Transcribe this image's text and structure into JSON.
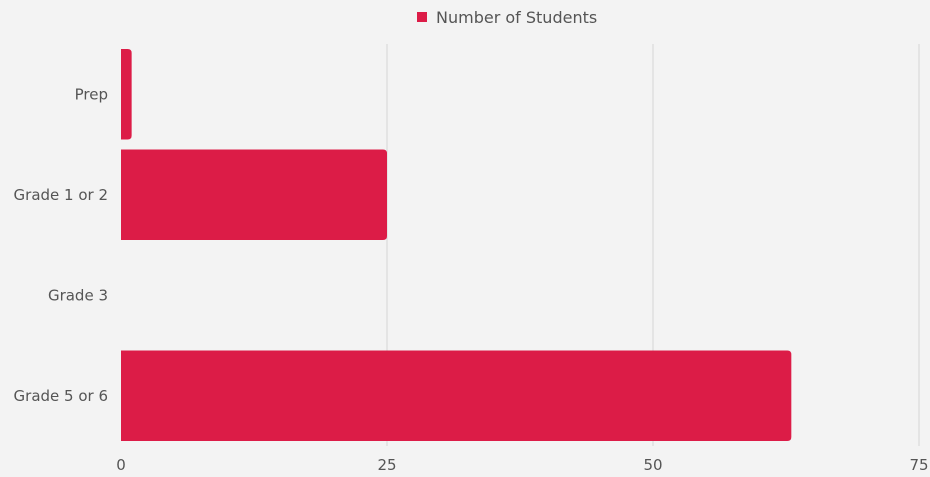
{
  "legend": {
    "label": "Number of Students"
  },
  "colors": {
    "bar": "#dc1c47",
    "background": "#f3f3f3",
    "grid": "#d6d6d6",
    "text": "#555555"
  },
  "chart_data": {
    "type": "bar",
    "orientation": "horizontal",
    "categories": [
      "Prep",
      "Grade 1 or 2",
      "Grade 3",
      "Grade 5 or 6"
    ],
    "series": [
      {
        "name": "Number of Students",
        "values": [
          1,
          25,
          0,
          63
        ]
      }
    ],
    "xlim": [
      0,
      75
    ],
    "xticks": [
      "0",
      "25",
      "50",
      "75"
    ],
    "grid": true,
    "legend_position": "top-center"
  }
}
